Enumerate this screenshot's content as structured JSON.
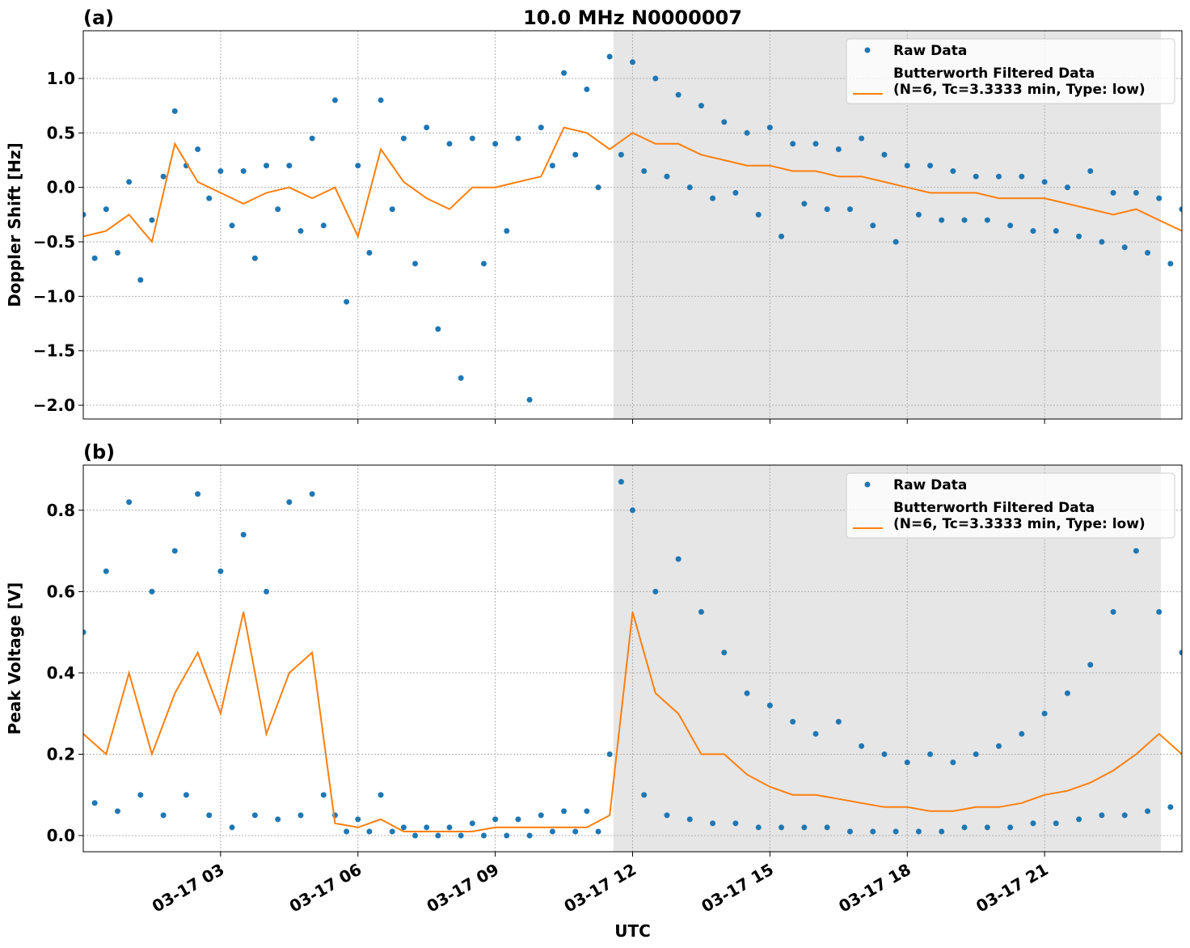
{
  "chart_data": [
    {
      "type": "line",
      "title": "10.0 MHz N0000007",
      "panel_label": "(a)",
      "ylabel": "Doppler Shift [Hz]",
      "xlim": [
        0,
        24
      ],
      "xticks": [
        3,
        6,
        9,
        12,
        15,
        18,
        21
      ],
      "ylim": [
        -2.126,
        1.438
      ],
      "yticks": [
        {
          "value": -2,
          "label": "−2.0"
        },
        {
          "value": -1.5,
          "label": "−1.5"
        },
        {
          "value": -1,
          "label": "−1.0"
        },
        {
          "value": -0.5,
          "label": "−0.5"
        },
        {
          "value": 0,
          "label": "0.0"
        },
        0.5,
        {
          "value": 1,
          "label": "1.0"
        }
      ],
      "grid": true,
      "legend": "upper right",
      "shade": [
        11.58,
        23.54
      ],
      "shade_color": "#e6e6e6",
      "series": [
        {
          "name": "Raw Data",
          "mode": "markers",
          "color": "#1f77b4",
          "x": [
            0,
            0.25,
            0.5,
            0.75,
            1,
            1.25,
            1.5,
            1.75,
            2,
            2.25,
            2.5,
            2.75,
            3,
            3.25,
            3.5,
            3.75,
            4,
            4.25,
            4.5,
            4.75,
            5,
            5.25,
            5.5,
            5.75,
            6,
            6.25,
            6.5,
            6.75,
            7,
            7.25,
            7.5,
            7.75,
            8,
            8.25,
            8.5,
            8.75,
            9,
            9.25,
            9.5,
            9.75,
            10,
            10.25,
            10.5,
            10.75,
            11,
            11.25,
            11.5,
            11.75,
            12,
            12.25,
            12.5,
            12.75,
            13,
            13.25,
            13.5,
            13.75,
            14,
            14.25,
            14.5,
            14.75,
            15,
            15.25,
            15.5,
            15.75,
            16,
            16.25,
            16.5,
            16.75,
            17,
            17.25,
            17.5,
            17.75,
            18,
            18.25,
            18.5,
            18.75,
            19,
            19.25,
            19.5,
            19.75,
            20,
            20.25,
            20.5,
            20.75,
            21,
            21.25,
            21.5,
            21.75,
            22,
            22.25,
            22.5,
            22.75,
            23,
            23.25,
            23.5,
            23.75,
            24
          ],
          "values": [
            -0.25,
            -0.65,
            -0.2,
            -0.6,
            0.05,
            -0.85,
            -0.3,
            0.1,
            0.7,
            0.2,
            0.35,
            -0.1,
            0.15,
            -0.35,
            0.15,
            -0.65,
            0.2,
            -0.2,
            0.2,
            -0.4,
            0.45,
            -0.35,
            0.8,
            -1.05,
            0.2,
            -0.6,
            0.8,
            -0.2,
            0.45,
            -0.7,
            0.55,
            -1.3,
            0.4,
            -1.75,
            0.45,
            -0.7,
            0.4,
            -0.4,
            0.45,
            -1.95,
            0.55,
            0.2,
            1.05,
            0.3,
            0.9,
            0,
            1.2,
            0.3,
            1.15,
            0.15,
            1,
            0.1,
            0.85,
            0,
            0.75,
            -0.1,
            0.6,
            -0.05,
            0.5,
            -0.25,
            0.55,
            -0.45,
            0.4,
            -0.15,
            0.4,
            -0.2,
            0.35,
            -0.2,
            0.45,
            -0.35,
            0.3,
            -0.5,
            0.2,
            -0.25,
            0.2,
            -0.3,
            0.15,
            -0.3,
            0.1,
            -0.3,
            0.1,
            -0.35,
            0.1,
            -0.4,
            0.05,
            -0.4,
            0,
            -0.45,
            0.15,
            -0.5,
            -0.05,
            -0.55,
            -0.05,
            -0.6,
            -0.1,
            -0.7,
            -0.2
          ]
        },
        {
          "name": "Butterworth Filtered Data\n(N=6, Tc=3.3333 min, Type: low)",
          "mode": "lines",
          "color": "#ff7f0e",
          "x": [
            0,
            0.5,
            1,
            1.5,
            2,
            2.5,
            3,
            3.5,
            4,
            4.5,
            5,
            5.5,
            6,
            6.5,
            7,
            7.5,
            8,
            8.5,
            9,
            9.5,
            10,
            10.5,
            11,
            11.5,
            12,
            12.5,
            13,
            13.5,
            14,
            14.5,
            15,
            15.5,
            16,
            16.5,
            17,
            17.5,
            18,
            18.5,
            19,
            19.5,
            20,
            20.5,
            21,
            21.5,
            22,
            22.5,
            23,
            23.5,
            24
          ],
          "values": [
            -0.45,
            -0.4,
            -0.25,
            -0.5,
            0.4,
            0.05,
            -0.05,
            -0.15,
            -0.05,
            0,
            -0.1,
            0,
            -0.45,
            0.35,
            0.05,
            -0.1,
            -0.2,
            0,
            0,
            0.05,
            0.1,
            0.55,
            0.5,
            0.35,
            0.5,
            0.4,
            0.4,
            0.3,
            0.25,
            0.2,
            0.2,
            0.15,
            0.15,
            0.1,
            0.1,
            0.05,
            0,
            -0.05,
            -0.05,
            -0.05,
            -0.1,
            -0.1,
            -0.1,
            -0.15,
            -0.2,
            -0.25,
            -0.2,
            -0.3,
            -0.4
          ]
        }
      ]
    },
    {
      "type": "line",
      "panel_label": "(b)",
      "ylabel": "Peak Voltage [V]",
      "xlabel": "UTC",
      "xlim": [
        0,
        24
      ],
      "xticks": [
        {
          "value": 3,
          "label": "03-17 03"
        },
        {
          "value": 6,
          "label": "03-17 06"
        },
        {
          "value": 9,
          "label": "03-17 09"
        },
        {
          "value": 12,
          "label": "03-17 12"
        },
        {
          "value": 15,
          "label": "03-17 15"
        },
        {
          "value": 18,
          "label": "03-17 18"
        },
        {
          "value": 21,
          "label": "03-17 21"
        }
      ],
      "ylim": [
        -0.0398,
        0.911
      ],
      "yticks": [
        {
          "value": 0,
          "label": "0.0"
        },
        0.2,
        0.4,
        0.6,
        0.8
      ],
      "grid": true,
      "legend": "upper right",
      "shade": [
        11.58,
        23.54
      ],
      "shade_color": "#e6e6e6",
      "series": [
        {
          "name": "Raw Data",
          "mode": "markers",
          "color": "#1f77b4",
          "x": [
            0,
            0.25,
            0.5,
            0.75,
            1,
            1.25,
            1.5,
            1.75,
            2,
            2.25,
            2.5,
            2.75,
            3,
            3.25,
            3.5,
            3.75,
            4,
            4.25,
            4.5,
            4.75,
            5,
            5.25,
            5.5,
            5.75,
            6,
            6.25,
            6.5,
            6.75,
            7,
            7.25,
            7.5,
            7.75,
            8,
            8.25,
            8.5,
            8.75,
            9,
            9.25,
            9.5,
            9.75,
            10,
            10.25,
            10.5,
            10.75,
            11,
            11.25,
            11.5,
            11.75,
            12,
            12.25,
            12.5,
            12.75,
            13,
            13.25,
            13.5,
            13.75,
            14,
            14.25,
            14.5,
            14.75,
            15,
            15.25,
            15.5,
            15.75,
            16,
            16.25,
            16.5,
            16.75,
            17,
            17.25,
            17.5,
            17.75,
            18,
            18.25,
            18.5,
            18.75,
            19,
            19.25,
            19.5,
            19.75,
            20,
            20.25,
            20.5,
            20.75,
            21,
            21.25,
            21.5,
            21.75,
            22,
            22.25,
            22.5,
            22.75,
            23,
            23.25,
            23.5,
            23.75,
            24
          ],
          "values": [
            0.5,
            0.08,
            0.65,
            0.06,
            0.82,
            0.1,
            0.6,
            0.05,
            0.7,
            0.1,
            0.84,
            0.05,
            0.65,
            0.02,
            0.74,
            0.05,
            0.6,
            0.04,
            0.82,
            0.05,
            0.84,
            0.1,
            0.05,
            0.01,
            0.04,
            0.01,
            0.1,
            0.01,
            0.02,
            0,
            0.02,
            0,
            0.02,
            0,
            0.03,
            0,
            0.04,
            0,
            0.04,
            0,
            0.05,
            0.01,
            0.06,
            0.01,
            0.06,
            0.01,
            0.2,
            0.87,
            0.8,
            0.1,
            0.6,
            0.05,
            0.68,
            0.04,
            0.55,
            0.03,
            0.45,
            0.03,
            0.35,
            0.02,
            0.32,
            0.02,
            0.28,
            0.02,
            0.25,
            0.02,
            0.28,
            0.01,
            0.22,
            0.01,
            0.2,
            0.01,
            0.18,
            0.01,
            0.2,
            0.01,
            0.18,
            0.02,
            0.2,
            0.02,
            0.22,
            0.02,
            0.25,
            0.03,
            0.3,
            0.03,
            0.35,
            0.04,
            0.42,
            0.05,
            0.55,
            0.05,
            0.7,
            0.06,
            0.55,
            0.07,
            0.45
          ]
        },
        {
          "name": "Butterworth Filtered Data\n(N=6, Tc=3.3333 min, Type: low)",
          "mode": "lines",
          "color": "#ff7f0e",
          "x": [
            0,
            0.5,
            1,
            1.5,
            2,
            2.5,
            3,
            3.5,
            4,
            4.5,
            5,
            5.5,
            6,
            6.5,
            7,
            7.5,
            8,
            8.5,
            9,
            9.5,
            10,
            10.5,
            11,
            11.5,
            12,
            12.5,
            13,
            13.5,
            14,
            14.5,
            15,
            15.5,
            16,
            16.5,
            17,
            17.5,
            18,
            18.5,
            19,
            19.5,
            20,
            20.5,
            21,
            21.5,
            22,
            22.5,
            23,
            23.5,
            24
          ],
          "values": [
            0.25,
            0.2,
            0.4,
            0.2,
            0.35,
            0.45,
            0.3,
            0.55,
            0.25,
            0.4,
            0.45,
            0.03,
            0.02,
            0.04,
            0.01,
            0.01,
            0.01,
            0.01,
            0.02,
            0.02,
            0.02,
            0.02,
            0.02,
            0.05,
            0.55,
            0.35,
            0.3,
            0.2,
            0.2,
            0.15,
            0.12,
            0.1,
            0.1,
            0.09,
            0.08,
            0.07,
            0.07,
            0.06,
            0.06,
            0.07,
            0.07,
            0.08,
            0.1,
            0.11,
            0.13,
            0.16,
            0.2,
            0.25,
            0.2
          ]
        }
      ]
    }
  ]
}
